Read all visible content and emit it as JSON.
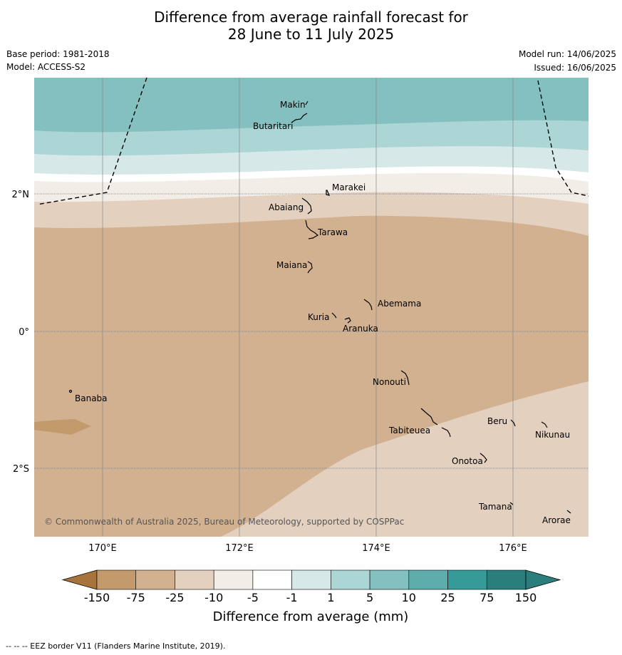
{
  "title_line1": "Difference from average rainfall forecast for",
  "title_line2": "28 June to 11 July 2025",
  "base_period": "Base period: 1981-2018",
  "model": "Model: ACCESS-S2",
  "model_run": "Model run: 14/06/2025",
  "issued": "Issued: 16/06/2025",
  "copyright": "© Commonwealth of Australia 2025, Bureau of Meteorology, supported by COSPPac",
  "footnote": "--  --  -- EEZ border V11 (Flanders Marine Institute, 2019).",
  "axes": {
    "x_ticks": [
      "170°E",
      "172°E",
      "174°E",
      "176°E"
    ],
    "y_ticks": [
      "2°N",
      "0°",
      "2°S"
    ]
  },
  "places": [
    "Makin",
    "Butaritari",
    "Marakei",
    "Abaiang",
    "Tarawa",
    "Maiana",
    "Abemama",
    "Kuria",
    "Aranuka",
    "Nonouti",
    "Banaba",
    "Beru",
    "Nikunau",
    "Tabiteuea",
    "Onotoa",
    "Tamana",
    "Arorae"
  ],
  "colorbar": {
    "label": "Difference from average (mm)",
    "ticks": [
      "-150",
      "-75",
      "-25",
      "-10",
      "-5",
      "-1",
      "1",
      "5",
      "10",
      "25",
      "75",
      "150"
    ],
    "colors": [
      "#a8743e",
      "#c39a6c",
      "#d2b190",
      "#e3d0bf",
      "#f2ede6",
      "#ffffff",
      "#d6e9e8",
      "#acd6d5",
      "#84c0bf",
      "#5eacab",
      "#359a98",
      "#2a7f7d"
    ]
  }
}
